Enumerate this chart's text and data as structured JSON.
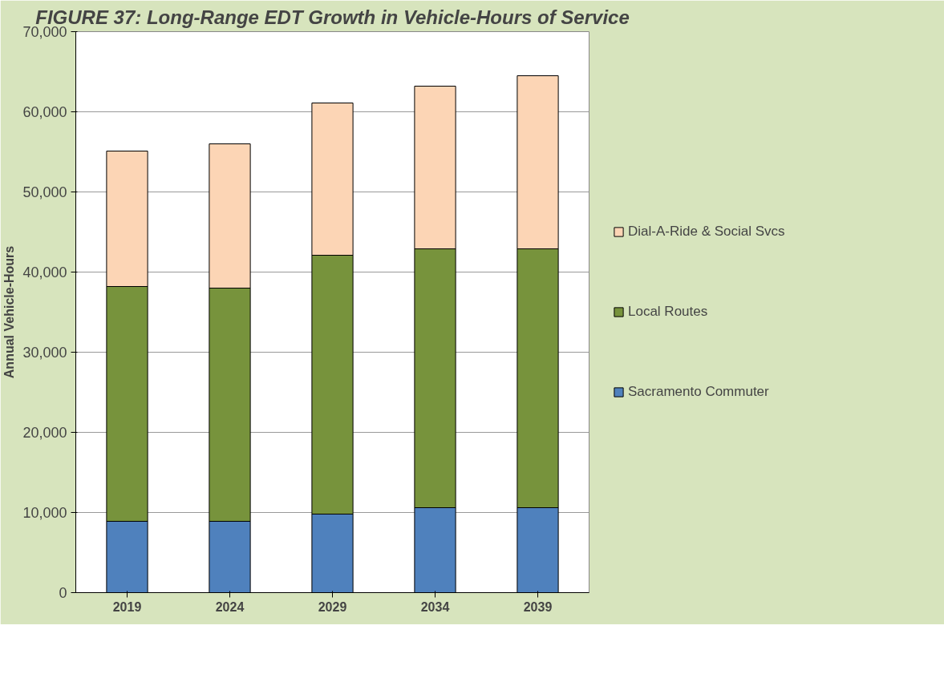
{
  "chart_data": {
    "type": "bar",
    "title": "FIGURE 37: Long-Range EDT Growth in Vehicle-Hours of Service",
    "ylabel": "Annual Vehicle-Hours",
    "categories": [
      "2019",
      "2024",
      "2029",
      "2034",
      "2039"
    ],
    "stacked": true,
    "series": [
      {
        "name": "Sacramento Commuter",
        "color": "#4f81bd",
        "values": [
          8900,
          8900,
          9800,
          10600,
          10600
        ]
      },
      {
        "name": "Local Routes",
        "color": "#77933c",
        "values": [
          29300,
          29100,
          32300,
          32300,
          32300
        ]
      },
      {
        "name": "Dial-A-Ride & Social Svcs",
        "color": "#fcd5b5",
        "values": [
          16900,
          18000,
          19000,
          20300,
          21600
        ]
      }
    ],
    "ylim": [
      0,
      70000
    ],
    "yticks": [
      {
        "value": 0,
        "label": "0"
      },
      {
        "value": 10000,
        "label": "10,000"
      },
      {
        "value": 20000,
        "label": "20,000"
      },
      {
        "value": 30000,
        "label": "30,000"
      },
      {
        "value": 40000,
        "label": "40,000"
      },
      {
        "value": 50000,
        "label": "50,000"
      },
      {
        "value": 60000,
        "label": "60,000"
      },
      {
        "value": 70000,
        "label": "70,000"
      }
    ],
    "grid": "y",
    "legend": "right"
  }
}
